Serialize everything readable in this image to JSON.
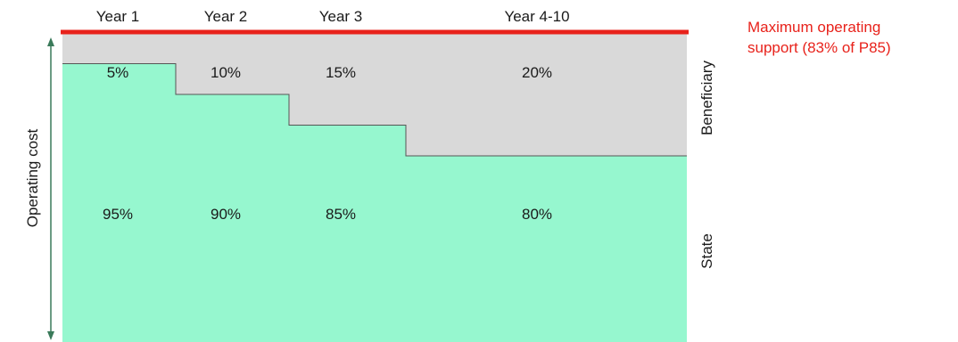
{
  "chart_data": {
    "type": "area",
    "categories": [
      "Year 1",
      "Year 2",
      "Year 3",
      "Year 4-10"
    ],
    "series": [
      {
        "name": "Beneficiary",
        "values": [
          5,
          10,
          15,
          20
        ],
        "labels": [
          "5%",
          "10%",
          "15%",
          "20%"
        ]
      },
      {
        "name": "State",
        "values": [
          95,
          90,
          85,
          80
        ],
        "labels": [
          "95%",
          "90%",
          "85%",
          "80%"
        ]
      }
    ],
    "ylabel": "Operating cost",
    "ylim": [
      0,
      100
    ],
    "annotation": {
      "line1": "Maximum operating",
      "line2": "support (83% of P85)"
    },
    "colors": {
      "beneficiary": "#d9d9d9",
      "state": "#96f7cf",
      "max_line": "#e8221b",
      "step_line": "#555555",
      "arrow": "#3a7a5a"
    }
  }
}
